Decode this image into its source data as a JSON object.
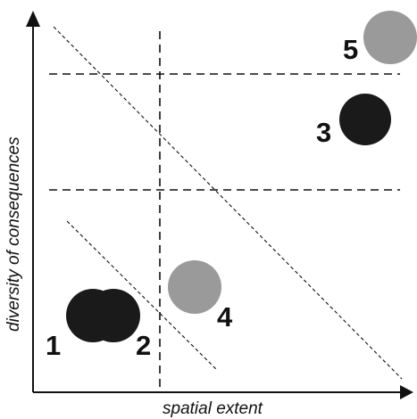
{
  "axes": {
    "x_label": "spatial extent",
    "y_label": "diversity of consequences"
  },
  "markers": [
    {
      "label": "1",
      "shade": "dark"
    },
    {
      "label": "2",
      "shade": "dark"
    },
    {
      "label": "3",
      "shade": "dark"
    },
    {
      "label": "4",
      "shade": "light"
    },
    {
      "label": "5",
      "shade": "light"
    }
  ],
  "colors": {
    "dark": "#1a1a1a",
    "light": "#9a9a9a",
    "axis": "#111111",
    "dash": "#111111"
  }
}
